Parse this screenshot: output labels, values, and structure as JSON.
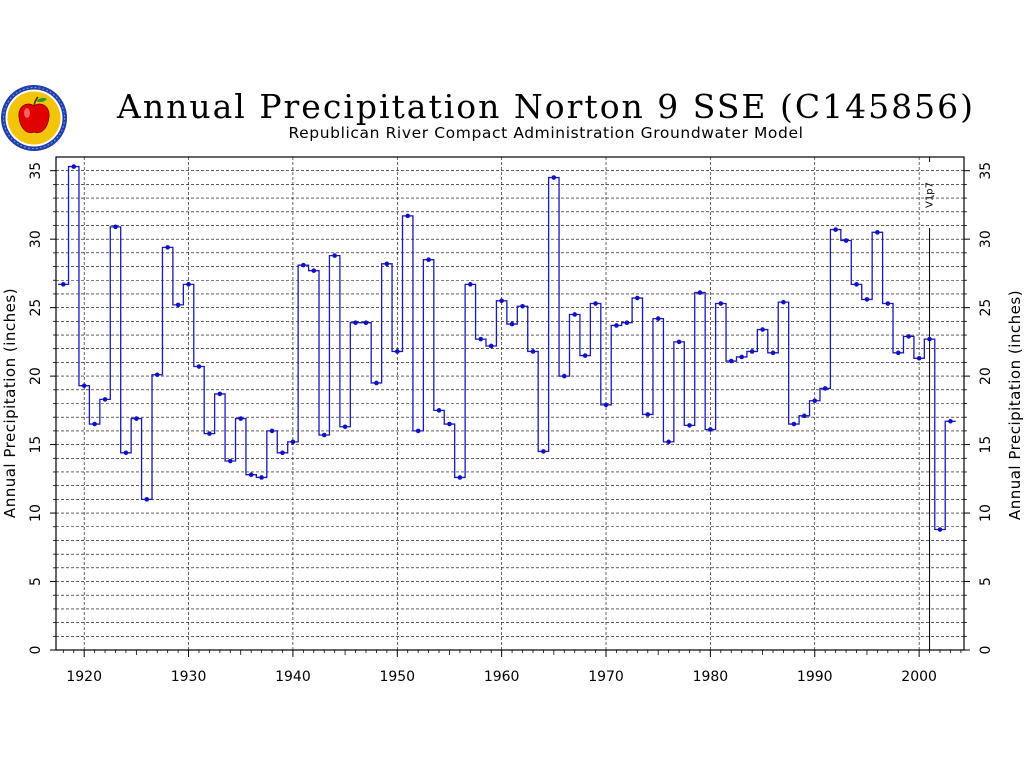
{
  "chart_data": {
    "type": "line",
    "step": true,
    "title": "Annual Precipitation Norton 9 SSE (C145856)",
    "subtitle": "Republican River Compact Administration Groundwater Model",
    "ylabel": "Annual Precipitation (inches)",
    "ylabel_right": "Annual Precipitation (inches)",
    "xlim": [
      1917.3,
      2004.3
    ],
    "ylim": [
      0,
      36
    ],
    "x_ticks": [
      1920,
      1930,
      1940,
      1950,
      1960,
      1970,
      1980,
      1990,
      2000
    ],
    "y_ticks": [
      0,
      5,
      10,
      15,
      20,
      25,
      30,
      35
    ],
    "grid": true,
    "colors": {
      "line": "#1a1ab4",
      "point": "#1010c8",
      "grid": "#000000"
    },
    "vertical_marker": {
      "x": 2001,
      "label": "V1ฺp7"
    },
    "logo": {
      "name": "apple-seal-logo",
      "ring_color": "#1f3ea8",
      "fill_color": "#f2c40a",
      "apple_color": "#e00000"
    },
    "series": [
      {
        "x": [
          1918,
          1919,
          1920,
          1921,
          1922,
          1923,
          1924,
          1925,
          1926,
          1927,
          1928,
          1929,
          1930,
          1931,
          1932,
          1933,
          1934,
          1935,
          1936,
          1937,
          1938,
          1939,
          1940,
          1941,
          1942,
          1943,
          1944,
          1945,
          1946,
          1947,
          1948,
          1949,
          1950,
          1951,
          1952,
          1953,
          1954,
          1955,
          1956,
          1957,
          1958,
          1959,
          1960,
          1961,
          1962,
          1963,
          1964,
          1965,
          1966,
          1967,
          1968,
          1969,
          1970,
          1971,
          1972,
          1973,
          1974,
          1975,
          1976,
          1977,
          1978,
          1979,
          1980,
          1981,
          1982,
          1983,
          1984,
          1985,
          1986,
          1987,
          1988,
          1989,
          1990,
          1991,
          1992,
          1993,
          1994,
          1995,
          1996,
          1997,
          1998,
          1999,
          2000,
          2001,
          2002,
          2003
        ],
        "values": [
          26.7,
          35.3,
          19.3,
          16.5,
          18.3,
          30.9,
          14.4,
          16.9,
          11.0,
          20.1,
          29.4,
          25.2,
          26.7,
          20.7,
          15.8,
          18.7,
          13.8,
          16.9,
          12.8,
          12.6,
          16.0,
          14.4,
          15.2,
          28.1,
          27.7,
          15.7,
          28.8,
          16.3,
          23.9,
          23.9,
          19.5,
          28.2,
          21.8,
          31.7,
          16.0,
          28.5,
          17.5,
          16.5,
          12.6,
          26.7,
          22.7,
          22.2,
          25.5,
          23.8,
          25.1,
          21.8,
          14.5,
          34.5,
          20.0,
          24.5,
          21.5,
          25.3,
          17.9,
          23.7,
          23.9,
          25.7,
          17.2,
          24.2,
          15.2,
          22.5,
          16.4,
          26.1,
          16.1,
          25.3,
          21.1,
          21.4,
          21.8,
          23.4,
          21.7,
          25.4,
          16.5,
          17.1,
          18.2,
          19.1,
          30.7,
          29.9,
          26.7,
          25.6,
          30.5,
          25.3,
          21.7,
          22.9,
          21.3,
          22.7,
          8.8,
          16.7
        ]
      }
    ]
  }
}
